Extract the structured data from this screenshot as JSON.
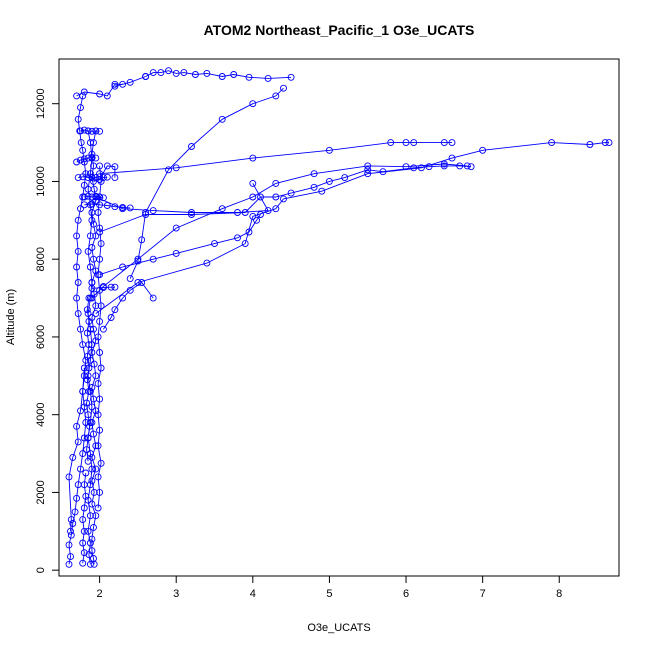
{
  "chart_data": {
    "type": "line",
    "title": "ATOM2 Northeast_Pacific_1 O3e_UCATS",
    "xlabel": "O3e_UCATS",
    "ylabel": "Altitude (m)",
    "xlim": [
      1.47,
      8.78
    ],
    "ylim": [
      -150,
      13150
    ],
    "xticks": [
      2,
      3,
      4,
      5,
      6,
      7,
      8
    ],
    "yticks": [
      0,
      2000,
      4000,
      6000,
      8000,
      10000,
      12000
    ],
    "xtick_labels": [
      "2",
      "3",
      "4",
      "5",
      "6",
      "7",
      "8"
    ],
    "ytick_labels": [
      "0",
      "2000",
      "4000",
      "6000",
      "8000",
      "10000",
      "12000"
    ],
    "grid": false,
    "legend": "none",
    "markers": "open-circle",
    "color": "#0000ff",
    "segments": [
      [
        [
          1.6,
          150
        ],
        [
          1.62,
          350
        ],
        [
          1.6,
          650
        ],
        [
          1.63,
          900
        ],
        [
          1.65,
          1200
        ],
        [
          1.68,
          1500
        ],
        [
          1.7,
          1850
        ],
        [
          1.72,
          2200
        ],
        [
          1.75,
          2600
        ],
        [
          1.78,
          3000
        ],
        [
          1.8,
          3400
        ],
        [
          1.82,
          3800
        ],
        [
          1.8,
          4200
        ],
        [
          1.78,
          4600
        ],
        [
          1.8,
          5000
        ],
        [
          1.82,
          5400
        ],
        [
          1.78,
          5800
        ],
        [
          1.75,
          6200
        ],
        [
          1.72,
          6600
        ],
        [
          1.7,
          7000
        ],
        [
          1.72,
          7400
        ],
        [
          1.7,
          7800
        ],
        [
          1.72,
          8200
        ],
        [
          1.7,
          8600
        ],
        [
          1.72,
          9000
        ],
        [
          1.75,
          9300
        ],
        [
          1.78,
          9600
        ],
        [
          1.8,
          9900
        ],
        [
          1.82,
          10200
        ],
        [
          1.8,
          10500
        ],
        [
          1.78,
          10800
        ],
        [
          1.76,
          11000
        ],
        [
          1.74,
          11300
        ],
        [
          1.72,
          11600
        ],
        [
          1.75,
          11900
        ],
        [
          1.78,
          12200
        ]
      ],
      [
        [
          1.62,
          1000
        ],
        [
          1.63,
          1300
        ],
        [
          1.6,
          2400
        ],
        [
          1.65,
          2900
        ],
        [
          1.72,
          3300
        ],
        [
          1.7,
          3700
        ],
        [
          1.75,
          4100
        ],
        [
          1.78,
          4600
        ],
        [
          1.8,
          5200
        ]
      ],
      [
        [
          1.93,
          150
        ],
        [
          1.92,
          300
        ],
        [
          1.9,
          500
        ],
        [
          1.9,
          800
        ],
        [
          1.92,
          1100
        ],
        [
          1.95,
          1400
        ],
        [
          1.9,
          1700
        ],
        [
          1.93,
          2000
        ],
        [
          1.9,
          2300
        ],
        [
          1.95,
          2600
        ],
        [
          1.9,
          2900
        ],
        [
          1.95,
          3200
        ],
        [
          1.92,
          3500
        ],
        [
          1.9,
          3800
        ],
        [
          1.95,
          4100
        ],
        [
          1.92,
          4400
        ],
        [
          1.9,
          4700
        ],
        [
          1.95,
          5000
        ],
        [
          1.93,
          5300
        ],
        [
          1.9,
          5600
        ],
        [
          1.95,
          5900
        ],
        [
          1.92,
          6200
        ],
        [
          1.9,
          6500
        ],
        [
          1.95,
          6800
        ],
        [
          1.93,
          7100
        ],
        [
          1.9,
          7400
        ],
        [
          1.95,
          7700
        ],
        [
          1.92,
          8000
        ],
        [
          1.9,
          8300
        ],
        [
          1.95,
          8600
        ],
        [
          1.92,
          8900
        ],
        [
          1.9,
          9200
        ],
        [
          1.95,
          9500
        ],
        [
          1.93,
          9800
        ],
        [
          1.9,
          10100
        ],
        [
          1.92,
          10400
        ],
        [
          1.9,
          10700
        ],
        [
          1.92,
          11000
        ],
        [
          1.95,
          11300
        ]
      ],
      [
        [
          1.88,
          150
        ],
        [
          1.86,
          400
        ],
        [
          1.88,
          700
        ],
        [
          1.85,
          1000
        ],
        [
          1.88,
          1400
        ],
        [
          1.85,
          1800
        ],
        [
          1.88,
          2200
        ],
        [
          1.9,
          2600
        ],
        [
          1.88,
          3000
        ],
        [
          1.85,
          3400
        ],
        [
          1.88,
          3800
        ],
        [
          1.9,
          4200
        ],
        [
          1.88,
          4600
        ],
        [
          1.85,
          5000
        ],
        [
          1.88,
          5400
        ],
        [
          1.9,
          5800
        ],
        [
          1.88,
          6200
        ],
        [
          1.85,
          6600
        ],
        [
          1.88,
          7000
        ],
        [
          1.9,
          7400
        ],
        [
          1.88,
          7800
        ],
        [
          1.85,
          8200
        ],
        [
          1.88,
          8600
        ],
        [
          1.9,
          9000
        ],
        [
          1.88,
          9400
        ],
        [
          1.85,
          9800
        ],
        [
          1.88,
          10200
        ],
        [
          1.9,
          10600
        ],
        [
          1.88,
          11000
        ],
        [
          1.85,
          11300
        ]
      ],
      [
        [
          1.98,
          1600
        ],
        [
          2.0,
          2000
        ],
        [
          1.98,
          2400
        ],
        [
          2.02,
          2750
        ],
        [
          1.98,
          3200
        ],
        [
          2.0,
          3600
        ],
        [
          1.98,
          4000
        ],
        [
          2.0,
          4400
        ],
        [
          1.98,
          4800
        ],
        [
          2.02,
          5200
        ],
        [
          2.0,
          5600
        ],
        [
          1.98,
          6000
        ],
        [
          2.0,
          6400
        ],
        [
          2.02,
          6800
        ],
        [
          2.0,
          7200
        ],
        [
          1.98,
          7600
        ],
        [
          2.0,
          8000
        ],
        [
          2.02,
          8400
        ],
        [
          2.0,
          8800
        ],
        [
          1.98,
          9200
        ],
        [
          2.0,
          9600
        ],
        [
          2.02,
          10000
        ],
        [
          2.0,
          10400
        ]
      ],
      [
        [
          1.78,
          180
        ],
        [
          1.8,
          450
        ],
        [
          1.78,
          700
        ],
        [
          1.8,
          1000
        ],
        [
          1.78,
          1300
        ],
        [
          1.8,
          1600
        ],
        [
          1.82,
          1900
        ],
        [
          1.8,
          2200
        ],
        [
          1.82,
          2500
        ]
      ],
      [
        [
          1.85,
          2800
        ],
        [
          1.83,
          3100
        ],
        [
          1.85,
          3400
        ],
        [
          1.87,
          3700
        ],
        [
          1.85,
          4000
        ],
        [
          1.83,
          4300
        ],
        [
          1.86,
          4600
        ],
        [
          1.84,
          4900
        ],
        [
          1.86,
          5200
        ],
        [
          1.84,
          5500
        ],
        [
          1.86,
          5800
        ],
        [
          1.84,
          6100
        ],
        [
          1.86,
          6400
        ],
        [
          1.84,
          6700
        ],
        [
          1.86,
          7000
        ]
      ],
      [
        [
          2.05,
          6200
        ],
        [
          2.15,
          6500
        ],
        [
          2.2,
          6700
        ],
        [
          2.3,
          7000
        ],
        [
          2.4,
          7200
        ],
        [
          2.55,
          7400
        ],
        [
          2.7,
          7000
        ]
      ],
      [
        [
          1.9,
          7250
        ],
        [
          2.05,
          7270
        ],
        [
          2.15,
          7280
        ],
        [
          2.2,
          7280
        ]
      ],
      [
        [
          2.0,
          7600
        ],
        [
          2.3,
          7800
        ],
        [
          2.7,
          8000
        ],
        [
          3.0,
          8150
        ],
        [
          3.5,
          8400
        ],
        [
          3.8,
          8550
        ],
        [
          3.95,
          8700
        ],
        [
          4.05,
          9000
        ],
        [
          4.1,
          9150
        ]
      ],
      [
        [
          2.4,
          7500
        ],
        [
          2.5,
          7950
        ],
        [
          2.55,
          8500
        ],
        [
          2.6,
          9200
        ],
        [
          2.9,
          10300
        ],
        [
          3.2,
          10900
        ],
        [
          3.6,
          11600
        ],
        [
          4.0,
          12000
        ],
        [
          4.3,
          12200
        ],
        [
          4.4,
          12400
        ]
      ],
      [
        [
          1.95,
          6600
        ],
        [
          2.5,
          7400
        ],
        [
          3.4,
          7900
        ],
        [
          3.9,
          8400
        ],
        [
          4.0,
          9100
        ],
        [
          4.3,
          9300
        ],
        [
          4.4,
          9550
        ],
        [
          4.9,
          9750
        ],
        [
          5.5,
          10200
        ],
        [
          6.2,
          10350
        ],
        [
          6.6,
          10600
        ],
        [
          7.0,
          10800
        ],
        [
          7.9,
          11000
        ],
        [
          8.4,
          10950
        ],
        [
          8.6,
          11000
        ],
        [
          8.65,
          11000
        ]
      ],
      [
        [
          2.0,
          8700
        ],
        [
          2.6,
          9150
        ],
        [
          3.2,
          9150
        ],
        [
          3.9,
          9200
        ],
        [
          4.1,
          9600
        ],
        [
          4.3,
          9600
        ],
        [
          4.5,
          9700
        ],
        [
          4.8,
          9850
        ],
        [
          5.0,
          10000
        ],
        [
          5.2,
          10100
        ],
        [
          5.5,
          10300
        ],
        [
          5.7,
          10250
        ],
        [
          6.1,
          10350
        ],
        [
          6.3,
          10380
        ],
        [
          6.5,
          10400
        ],
        [
          6.7,
          10400
        ],
        [
          6.85,
          10380
        ]
      ],
      [
        [
          1.9,
          7000
        ],
        [
          2.05,
          7300
        ],
        [
          2.5,
          8000
        ],
        [
          3.0,
          8800
        ],
        [
          3.6,
          9300
        ],
        [
          4.0,
          9600
        ],
        [
          4.3,
          9950
        ],
        [
          4.8,
          10200
        ],
        [
          5.5,
          10400
        ],
        [
          6.0,
          10380
        ],
        [
          6.5,
          10450
        ],
        [
          6.8,
          10400
        ]
      ],
      [
        [
          1.95,
          9600
        ],
        [
          2.3,
          9300
        ],
        [
          2.7,
          9250
        ],
        [
          3.2,
          9200
        ],
        [
          3.8,
          9200
        ],
        [
          4.2,
          9250
        ],
        [
          4.0,
          9950
        ]
      ],
      [
        [
          2.0,
          10200
        ],
        [
          3.0,
          10350
        ],
        [
          4.0,
          10600
        ],
        [
          5.0,
          10800
        ],
        [
          5.8,
          11000
        ],
        [
          6.0,
          11000
        ],
        [
          6.1,
          11000
        ],
        [
          6.5,
          11000
        ],
        [
          6.6,
          11000
        ]
      ],
      [
        [
          1.75,
          11300
        ],
        [
          1.8,
          11320
        ],
        [
          1.85,
          11300
        ],
        [
          1.9,
          11290
        ],
        [
          1.95,
          11300
        ],
        [
          2.0,
          11290
        ]
      ],
      [
        [
          1.7,
          10500
        ],
        [
          1.75,
          10550
        ],
        [
          1.8,
          10580
        ],
        [
          1.85,
          10600
        ],
        [
          1.9,
          10620
        ],
        [
          1.95,
          10600
        ]
      ],
      [
        [
          1.72,
          10100
        ],
        [
          1.78,
          10120
        ],
        [
          1.85,
          10100
        ],
        [
          1.9,
          10110
        ],
        [
          1.95,
          10100
        ],
        [
          2.0,
          10120
        ],
        [
          2.05,
          10100
        ],
        [
          2.1,
          10110
        ]
      ],
      [
        [
          1.8,
          9600
        ],
        [
          1.85,
          9620
        ],
        [
          1.9,
          9600
        ],
        [
          1.95,
          9620
        ],
        [
          2.0,
          9600
        ],
        [
          2.05,
          9580
        ]
      ],
      [
        [
          1.8,
          9400
        ],
        [
          1.9,
          9420
        ],
        [
          2.0,
          9400
        ],
        [
          2.1,
          9380
        ],
        [
          2.2,
          9350
        ],
        [
          2.3,
          9330
        ],
        [
          2.4,
          9320
        ]
      ],
      [
        [
          1.7,
          12200
        ],
        [
          1.8,
          12300
        ],
        [
          2.0,
          12250
        ],
        [
          2.1,
          12200
        ],
        [
          2.2,
          12500
        ],
        [
          2.3,
          12500
        ]
      ],
      [
        [
          2.6,
          12700
        ],
        [
          2.7,
          12800
        ],
        [
          2.8,
          12800
        ],
        [
          2.9,
          12850
        ],
        [
          3.0,
          12780
        ],
        [
          3.1,
          12800
        ],
        [
          3.25,
          12750
        ],
        [
          3.4,
          12780
        ],
        [
          3.6,
          12700
        ],
        [
          3.75,
          12750
        ],
        [
          3.95,
          12680
        ],
        [
          4.2,
          12650
        ],
        [
          4.5,
          12680
        ]
      ],
      [
        [
          2.2,
          12450
        ],
        [
          2.4,
          12550
        ],
        [
          2.6,
          12700
        ]
      ],
      [
        [
          1.92,
          10000
        ],
        [
          2.0,
          10050
        ],
        [
          2.1,
          10400
        ],
        [
          2.2,
          10380
        ],
        [
          2.2,
          10100
        ]
      ]
    ]
  }
}
